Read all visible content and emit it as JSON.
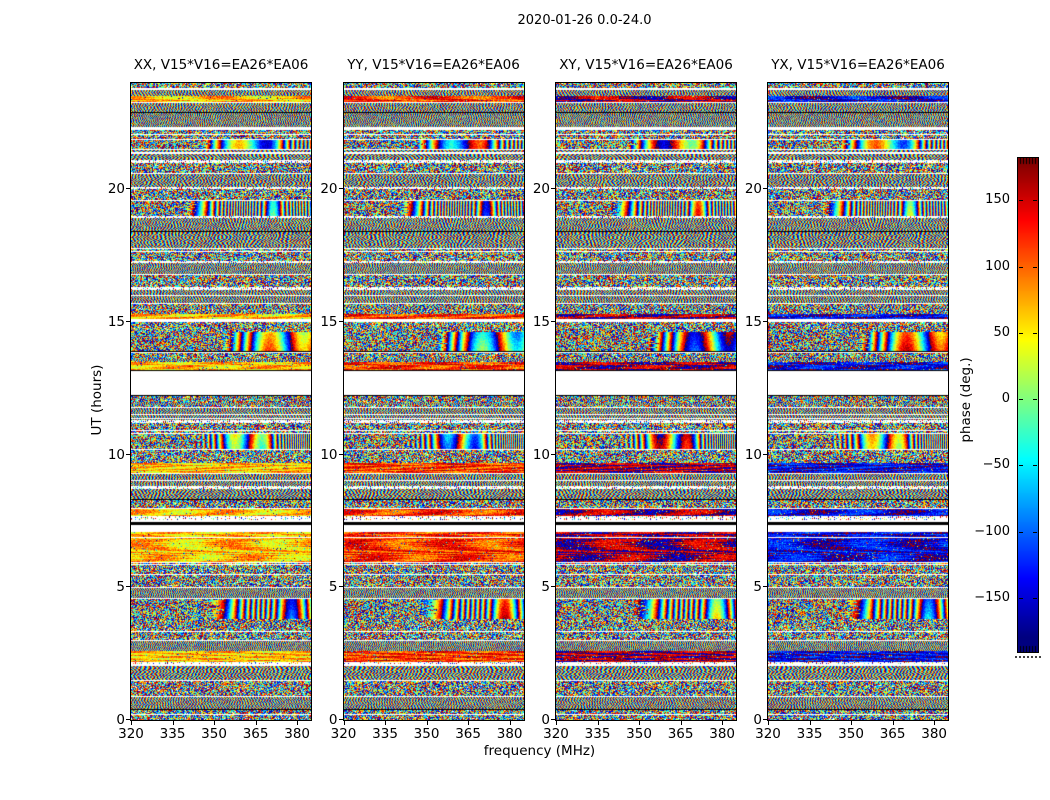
{
  "figure": {
    "title": "2020-01-26 0.0-24.0",
    "background": "#ffffff"
  },
  "chart_data": {
    "type": "heatmap",
    "title": "2020-01-26 0.0-24.0",
    "xlabel": "frequency (MHz)",
    "ylabel": "UT (hours)",
    "x_range": [
      320,
      385
    ],
    "x_ticks": [
      320,
      335,
      350,
      365,
      380
    ],
    "y_range": [
      0,
      24
    ],
    "y_ticks": [
      0,
      5,
      10,
      15,
      20
    ],
    "value_label": "phase (deg.)",
    "value_range": [
      -180,
      180
    ],
    "colormap": "jet",
    "colormap_stops": [
      "#00007f",
      "#0000ff",
      "#00ffff",
      "#7fff7f",
      "#ffff00",
      "#ff7f00",
      "#ff0000",
      "#7f0000"
    ],
    "colorbar_ticks": [
      {
        "label": "150",
        "value": 150
      },
      {
        "label": "100",
        "value": 100
      },
      {
        "label": "50",
        "value": 50
      },
      {
        "label": "0",
        "value": 0
      },
      {
        "label": "−50",
        "value": -50
      },
      {
        "label": "−100",
        "value": -100
      },
      {
        "label": "−150",
        "value": -150
      }
    ],
    "panels": [
      {
        "id": "XX",
        "title": "XX, V15*V16=EA26*EA06"
      },
      {
        "id": "YY",
        "title": "YY, V15*V16=EA26*EA06"
      },
      {
        "id": "XY",
        "title": "XY, V15*V16=EA26*EA06"
      },
      {
        "id": "YX",
        "title": "YX, V15*V16=EA26*EA06"
      }
    ],
    "band_types": {
      "n": "dense multicolor phase noise",
      "f": "fine vertical interference fringes",
      "d": "bold diagonal rainbow fringes",
      "c": "smooth low phase (green/cyan)",
      "w": "no data (white gap)",
      "k": "flagged row (black)",
      "s": "sparse dotted row"
    },
    "bands": [
      [
        24.0,
        23.8,
        "n"
      ],
      [
        23.8,
        23.74,
        "w"
      ],
      [
        23.74,
        23.5,
        "f"
      ],
      [
        23.5,
        23.3,
        "c"
      ],
      [
        23.3,
        23.24,
        "w"
      ],
      [
        23.24,
        22.9,
        "f"
      ],
      [
        22.9,
        22.86,
        "k"
      ],
      [
        22.86,
        22.3,
        "f"
      ],
      [
        22.3,
        22.24,
        "w"
      ],
      [
        22.24,
        21.9,
        "n"
      ],
      [
        21.9,
        21.86,
        "w"
      ],
      [
        21.86,
        21.5,
        "d"
      ],
      [
        21.5,
        21.46,
        "w"
      ],
      [
        21.46,
        21.1,
        "f"
      ],
      [
        21.1,
        21.0,
        "s"
      ],
      [
        21.0,
        20.6,
        "n"
      ],
      [
        20.6,
        20.56,
        "w"
      ],
      [
        20.56,
        20.1,
        "f"
      ],
      [
        20.1,
        20.0,
        "s"
      ],
      [
        20.0,
        19.6,
        "n"
      ],
      [
        19.6,
        19.56,
        "w"
      ],
      [
        19.56,
        19.0,
        "d"
      ],
      [
        19.0,
        18.9,
        "s"
      ],
      [
        18.9,
        18.44,
        "f"
      ],
      [
        18.44,
        18.4,
        "k"
      ],
      [
        18.4,
        17.8,
        "f"
      ],
      [
        17.8,
        17.76,
        "w"
      ],
      [
        17.76,
        17.3,
        "n"
      ],
      [
        17.3,
        17.2,
        "s"
      ],
      [
        17.2,
        16.8,
        "f"
      ],
      [
        16.8,
        16.76,
        "w"
      ],
      [
        16.76,
        16.3,
        "n"
      ],
      [
        16.3,
        16.2,
        "s"
      ],
      [
        16.2,
        15.7,
        "f"
      ],
      [
        15.7,
        15.66,
        "w"
      ],
      [
        15.66,
        15.3,
        "n"
      ],
      [
        15.3,
        15.1,
        "c"
      ],
      [
        15.1,
        15.0,
        "w"
      ],
      [
        15.0,
        14.6,
        "n"
      ],
      [
        14.6,
        13.9,
        "d"
      ],
      [
        13.9,
        13.86,
        "k"
      ],
      [
        13.86,
        13.5,
        "n"
      ],
      [
        13.5,
        13.2,
        "c"
      ],
      [
        13.2,
        13.14,
        "k"
      ],
      [
        13.14,
        12.25,
        "w"
      ],
      [
        12.25,
        12.2,
        "k"
      ],
      [
        12.2,
        11.8,
        "n"
      ],
      [
        11.8,
        11.76,
        "w"
      ],
      [
        11.76,
        11.3,
        "f"
      ],
      [
        11.3,
        11.2,
        "s"
      ],
      [
        11.2,
        10.8,
        "n"
      ],
      [
        10.8,
        10.76,
        "w"
      ],
      [
        10.76,
        10.2,
        "d"
      ],
      [
        10.2,
        10.16,
        "w"
      ],
      [
        10.16,
        9.7,
        "n"
      ],
      [
        9.7,
        9.3,
        "c"
      ],
      [
        9.3,
        9.26,
        "w"
      ],
      [
        9.26,
        8.8,
        "f"
      ],
      [
        8.8,
        8.7,
        "s"
      ],
      [
        8.7,
        8.34,
        "f"
      ],
      [
        8.34,
        8.3,
        "k"
      ],
      [
        8.3,
        7.95,
        "n"
      ],
      [
        7.95,
        7.7,
        "c"
      ],
      [
        7.7,
        7.55,
        "s"
      ],
      [
        7.55,
        7.45,
        "w"
      ],
      [
        7.45,
        7.35,
        "k"
      ],
      [
        7.35,
        7.1,
        "w"
      ],
      [
        7.1,
        6.9,
        "c"
      ],
      [
        6.9,
        6.86,
        "w"
      ],
      [
        6.86,
        5.95,
        "c"
      ],
      [
        5.95,
        5.9,
        "w"
      ],
      [
        5.9,
        5.5,
        "n"
      ],
      [
        5.5,
        5.46,
        "w"
      ],
      [
        5.46,
        5.0,
        "n"
      ],
      [
        5.0,
        4.96,
        "w"
      ],
      [
        4.96,
        4.6,
        "f"
      ],
      [
        4.6,
        4.56,
        "w"
      ],
      [
        4.56,
        3.8,
        "d"
      ],
      [
        3.8,
        3.0,
        "n"
      ],
      [
        3.0,
        2.96,
        "w"
      ],
      [
        2.96,
        2.6,
        "f"
      ],
      [
        2.6,
        2.2,
        "c"
      ],
      [
        2.2,
        2.1,
        "s"
      ],
      [
        2.1,
        2.04,
        "w"
      ],
      [
        2.04,
        1.5,
        "f"
      ],
      [
        1.5,
        1.46,
        "w"
      ],
      [
        1.46,
        0.9,
        "n"
      ],
      [
        0.9,
        0.86,
        "w"
      ],
      [
        0.86,
        0.4,
        "f"
      ],
      [
        0.4,
        0.36,
        "k"
      ],
      [
        0.36,
        0.0,
        "n"
      ]
    ]
  },
  "colors": {
    "axis": "#000000",
    "text": "#000000",
    "background": "#ffffff"
  }
}
